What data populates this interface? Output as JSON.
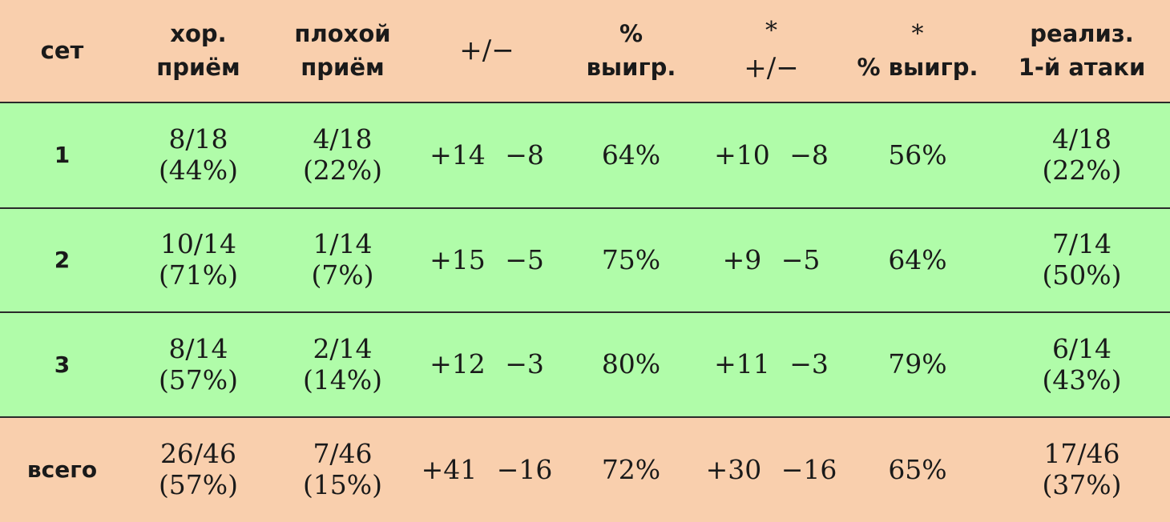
{
  "header": {
    "set": "сет",
    "good_reception": [
      "хор.",
      "приём"
    ],
    "bad_reception": [
      "плохой",
      "приём"
    ],
    "plus_minus": "+/−",
    "win_pct": [
      "%",
      "выигр."
    ],
    "star_plus_minus": [
      "*",
      "+/−"
    ],
    "star_win_pct": [
      "*",
      "% выигр."
    ],
    "first_attack": [
      "реализ.",
      "1-й атаки"
    ]
  },
  "rows": [
    {
      "set": "1",
      "good": [
        "8/18",
        "(44%)"
      ],
      "bad": [
        "4/18",
        "(22%)"
      ],
      "pm": "+14 −8",
      "win": "64%",
      "star_pm": "+10 −8",
      "star_win": "56%",
      "attack": [
        "4/18",
        "(22%)"
      ]
    },
    {
      "set": "2",
      "good": [
        "10/14",
        "(71%)"
      ],
      "bad": [
        "1/14",
        "(7%)"
      ],
      "pm": "+15 −5",
      "win": "75%",
      "star_pm": "+9 −5",
      "star_win": "64%",
      "attack": [
        "7/14",
        "(50%)"
      ]
    },
    {
      "set": "3",
      "good": [
        "8/14",
        "(57%)"
      ],
      "bad": [
        "2/14",
        "(14%)"
      ],
      "pm": "+12 −3",
      "win": "80%",
      "star_pm": "+11 −3",
      "star_win": "79%",
      "attack": [
        "6/14",
        "(43%)"
      ]
    }
  ],
  "total": {
    "set": "всего",
    "good": [
      "26/46",
      "(57%)"
    ],
    "bad": [
      "7/46",
      "(15%)"
    ],
    "pm": "+41 −16",
    "win": "72%",
    "star_pm": "+30 −16",
    "star_win": "65%",
    "attack": [
      "17/46",
      "(37%)"
    ]
  },
  "colors": {
    "header_bg": "#f9cfad",
    "body_bg": "#b0fca9",
    "border": "#2a2a2a"
  }
}
